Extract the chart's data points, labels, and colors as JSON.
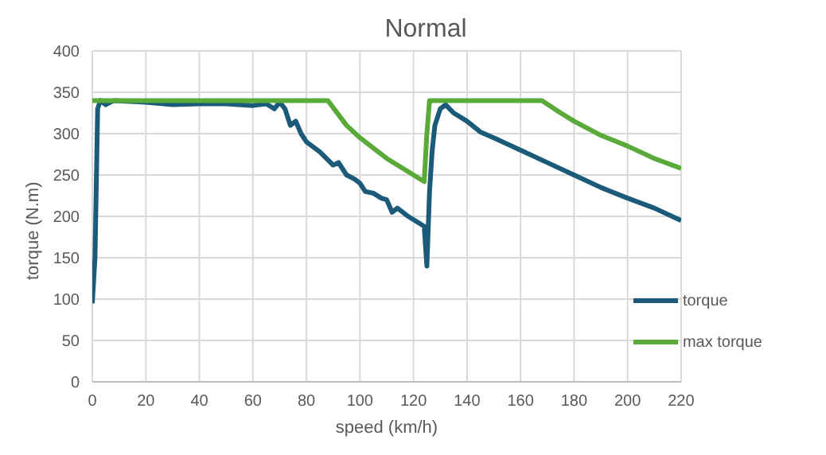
{
  "chart_data": {
    "type": "line",
    "title": "Normal",
    "xlabel": "speed (km/h)",
    "ylabel": "torque (N.m)",
    "xlim": [
      0,
      220
    ],
    "xticks": [
      0,
      20,
      40,
      60,
      80,
      100,
      120,
      140,
      160,
      180,
      200,
      220
    ],
    "ylim": [
      0,
      400
    ],
    "yticks": [
      0,
      50,
      100,
      150,
      200,
      250,
      300,
      350,
      400
    ],
    "grid": true,
    "legend": "bottom right",
    "marker": "none",
    "line_style": "solid",
    "series": [
      {
        "name": "torque",
        "color": "#1b5a78",
        "x": [
          0,
          1,
          2,
          3,
          5,
          8,
          20,
          30,
          40,
          50,
          60,
          65,
          68,
          70,
          72,
          74,
          76,
          78,
          80,
          85,
          90,
          92,
          95,
          98,
          100,
          102,
          105,
          108,
          110,
          112,
          114,
          118,
          122,
          124,
          125,
          126,
          127,
          128,
          130,
          132,
          135,
          140,
          145,
          150,
          160,
          170,
          180,
          190,
          200,
          210,
          220
        ],
        "values": [
          95,
          150,
          330,
          340,
          335,
          340,
          338,
          335,
          336,
          336,
          334,
          336,
          330,
          338,
          330,
          310,
          315,
          300,
          290,
          278,
          262,
          265,
          250,
          245,
          240,
          230,
          228,
          222,
          220,
          205,
          210,
          200,
          192,
          188,
          140,
          230,
          280,
          310,
          330,
          335,
          325,
          315,
          302,
          295,
          280,
          265,
          250,
          235,
          222,
          210,
          195
        ]
      },
      {
        "name": "max torque",
        "color": "#5aaa3a",
        "x": [
          0,
          88,
          95,
          100,
          110,
          120,
          124,
          125,
          126,
          168,
          175,
          180,
          190,
          200,
          210,
          220
        ],
        "values": [
          340,
          340,
          310,
          295,
          270,
          250,
          242,
          300,
          340,
          340,
          325,
          315,
          298,
          285,
          270,
          258
        ]
      }
    ]
  }
}
